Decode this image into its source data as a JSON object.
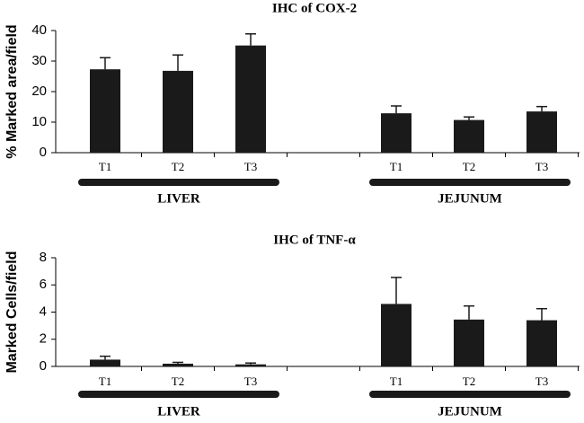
{
  "chart_data": [
    {
      "type": "bar",
      "title": "IHC of COX-2",
      "ylabel": "% Marked area/field",
      "categories": [
        "T1",
        "T2",
        "T3",
        null,
        "T1",
        "T2",
        "T3"
      ],
      "values": [
        27.3,
        26.8,
        35.1,
        null,
        12.9,
        10.7,
        13.5
      ],
      "errors": [
        3.8,
        5.2,
        3.8,
        null,
        2.4,
        1.0,
        1.6
      ],
      "color": "#1a1a1a",
      "ylim": [
        0,
        40
      ],
      "yticks": [
        0,
        10,
        20,
        30,
        40
      ],
      "group_labels": [
        "LIVER",
        "JEJUNUM"
      ]
    },
    {
      "type": "bar",
      "title": "IHC of TNF-α",
      "ylabel": "Marked Cells/field",
      "categories": [
        "T1",
        "T2",
        "T3",
        null,
        "T1",
        "T2",
        "T3"
      ],
      "values": [
        0.5,
        0.2,
        0.15,
        null,
        4.6,
        3.45,
        3.4
      ],
      "errors": [
        0.25,
        0.1,
        0.1,
        null,
        1.95,
        1.0,
        0.85
      ],
      "color": "#1a1a1a",
      "ylim": [
        0,
        8
      ],
      "yticks": [
        0,
        2,
        4,
        6,
        8
      ],
      "group_labels": [
        "LIVER",
        "JEJUNUM"
      ]
    }
  ]
}
